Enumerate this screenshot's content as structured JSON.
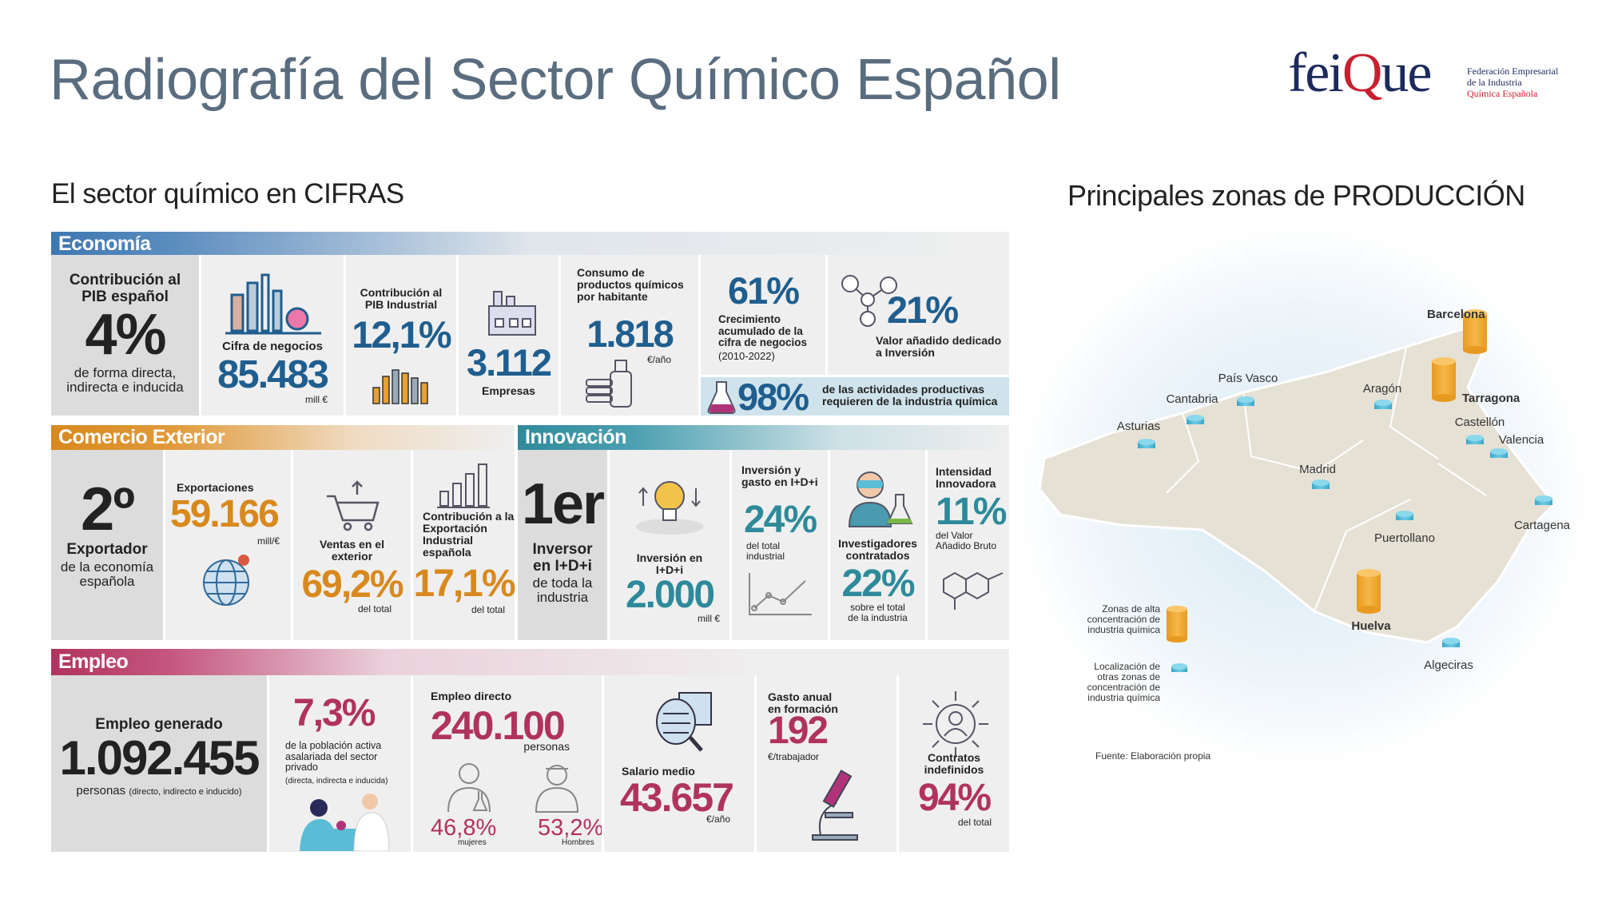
{
  "header": {
    "title": "Radiografía del Sector Químico Español",
    "logo_parts": [
      "fei",
      "Q",
      "ue"
    ],
    "logo_tagline": [
      "Federación Empresarial",
      "de la Industria",
      "Química Española"
    ]
  },
  "cifras": {
    "title": "El sector químico en CIFRAS",
    "economia": {
      "heading": "Economía",
      "pib": {
        "label": "Contribución al PIB español",
        "value": "4%",
        "note": "de forma directa, indirecta e inducida"
      },
      "negocios": {
        "label": "Cifra de negocios",
        "value": "85.483",
        "unit": "mill €"
      },
      "pib_industrial": {
        "label": "Contribución al PIB Industrial",
        "value": "12,1%"
      },
      "empresas": {
        "value": "3.112",
        "label": "Empresas"
      },
      "consumo": {
        "label": "Consumo de productos químicos por habitante",
        "value": "1.818",
        "unit": "€/año"
      },
      "crecimiento": {
        "value": "61%",
        "label": "Crecimiento acumulado de la cifra de negocios",
        "period": "(2010-2022)"
      },
      "valor_anadido": {
        "value": "21%",
        "label": "Valor añadido dedicado a Inversión"
      },
      "actividades": {
        "value": "98%",
        "label": "de las actividades productivas requieren de la industria química"
      }
    },
    "comercio": {
      "heading": "Comercio Exterior",
      "rank": {
        "value": "2º",
        "label": "Exportador",
        "note": "de la economía española"
      },
      "exportaciones": {
        "label": "Exportaciones",
        "value": "59.166",
        "unit": "mill/€"
      },
      "ventas": {
        "label": "Ventas en el exterior",
        "value": "69,2%",
        "unit": "del total"
      },
      "contribucion": {
        "label": "Contribución a la Exportación Industrial española",
        "value": "17,1%",
        "unit": "del total"
      }
    },
    "innovacion": {
      "heading": "Innovación",
      "rank": {
        "value": "1er",
        "label": "Inversor en I+D+i",
        "note": "de toda la industria"
      },
      "inversion": {
        "label": "Inversión en I+D+i",
        "value": "2.000",
        "unit": "mill €"
      },
      "gasto": {
        "label": "Inversión y gasto en I+D+i",
        "value": "24%",
        "unit": "del total industrial"
      },
      "investigadores": {
        "label": "Investigadores contratados",
        "value": "22%",
        "unit": "sobre el total de la industria"
      },
      "intensidad": {
        "label": "Intensidad Innovadora",
        "value": "11%",
        "unit": "del Valor Añadido Bruto"
      }
    },
    "empleo": {
      "heading": "Empleo",
      "generado": {
        "label": "Empleo generado",
        "value": "1.092.455",
        "unit": "personas",
        "note": "(directo, indirecto e inducido)"
      },
      "poblacion": {
        "value": "7,3%",
        "label": "de la población activa asalariada del sector privado",
        "note": "(directa, indirecta e inducida)"
      },
      "directo": {
        "label": "Empleo directo",
        "value": "240.100",
        "unit": "personas",
        "women_value": "46,8%",
        "women_label": "mujeres",
        "men_value": "53,2%",
        "men_label": "Hombres"
      },
      "salario": {
        "label": "Salario medio",
        "value": "43.657",
        "unit": "€/año"
      },
      "formacion": {
        "label": "Gasto anual en formación",
        "value": "192",
        "unit": "€/trabajador"
      },
      "contratos": {
        "label": "Contratos indefinidos",
        "value": "94%",
        "unit": "del total"
      }
    }
  },
  "map": {
    "title": "Principales zonas de PRODUCCIÓN",
    "high_zones": [
      "Barcelona",
      "Tarragona",
      "Huelva"
    ],
    "other_zones": [
      "País Vasco",
      "Cantabria",
      "Asturias",
      "Aragón",
      "Castellón",
      "Valencia",
      "Madrid",
      "Puertollano",
      "Cartagena",
      "Algeciras"
    ],
    "legend": [
      "Zonas de alta concentración de industria química",
      "Localización de otras zonas de concentración de industria química"
    ],
    "source": "Fuente: Elaboración propia"
  }
}
